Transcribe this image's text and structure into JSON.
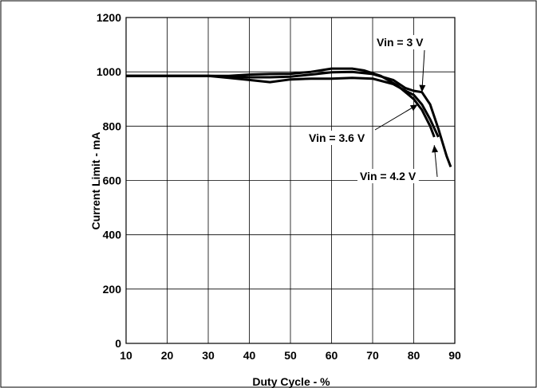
{
  "chart_data": {
    "type": "line",
    "title": "",
    "xlabel": "Duty Cycle - %",
    "ylabel": "Current Limit - mA",
    "xlim": [
      10,
      90
    ],
    "ylim": [
      0,
      1200
    ],
    "xticks": [
      10,
      20,
      30,
      40,
      50,
      60,
      70,
      80,
      90
    ],
    "yticks": [
      0,
      200,
      400,
      600,
      800,
      1000,
      1200
    ],
    "grid": true,
    "series": [
      {
        "name": "Vin = 3 V",
        "x": [
          10,
          20,
          30,
          35,
          40,
          45,
          50,
          55,
          60,
          65,
          70,
          75,
          78,
          80,
          82,
          84,
          86,
          88,
          89
        ],
        "y": [
          985,
          985,
          985,
          983,
          980,
          980,
          982,
          990,
          998,
          1000,
          992,
          970,
          940,
          930,
          925,
          880,
          790,
          690,
          650
        ]
      },
      {
        "name": "Vin = 3.6 V",
        "x": [
          10,
          20,
          30,
          35,
          40,
          45,
          50,
          55,
          60,
          65,
          68,
          72,
          76,
          80,
          82,
          84,
          85
        ],
        "y": [
          985,
          985,
          985,
          985,
          990,
          992,
          993,
          1000,
          1012,
          1012,
          1005,
          985,
          950,
          900,
          860,
          800,
          760
        ]
      },
      {
        "name": "Vin = 4.2 V",
        "x": [
          10,
          20,
          30,
          35,
          40,
          45,
          50,
          55,
          60,
          65,
          70,
          75,
          78,
          80,
          82,
          84,
          86
        ],
        "y": [
          985,
          985,
          985,
          978,
          970,
          962,
          972,
          975,
          975,
          978,
          975,
          955,
          930,
          915,
          880,
          825,
          760
        ]
      }
    ],
    "annotations": [
      {
        "text": "Vin = 3 V",
        "x": 82,
        "y": 925
      },
      {
        "text": "Vin = 3.6 V",
        "x": 81,
        "y": 880
      },
      {
        "text": "Vin = 4.2 V",
        "x": 85,
        "y": 730
      }
    ]
  }
}
